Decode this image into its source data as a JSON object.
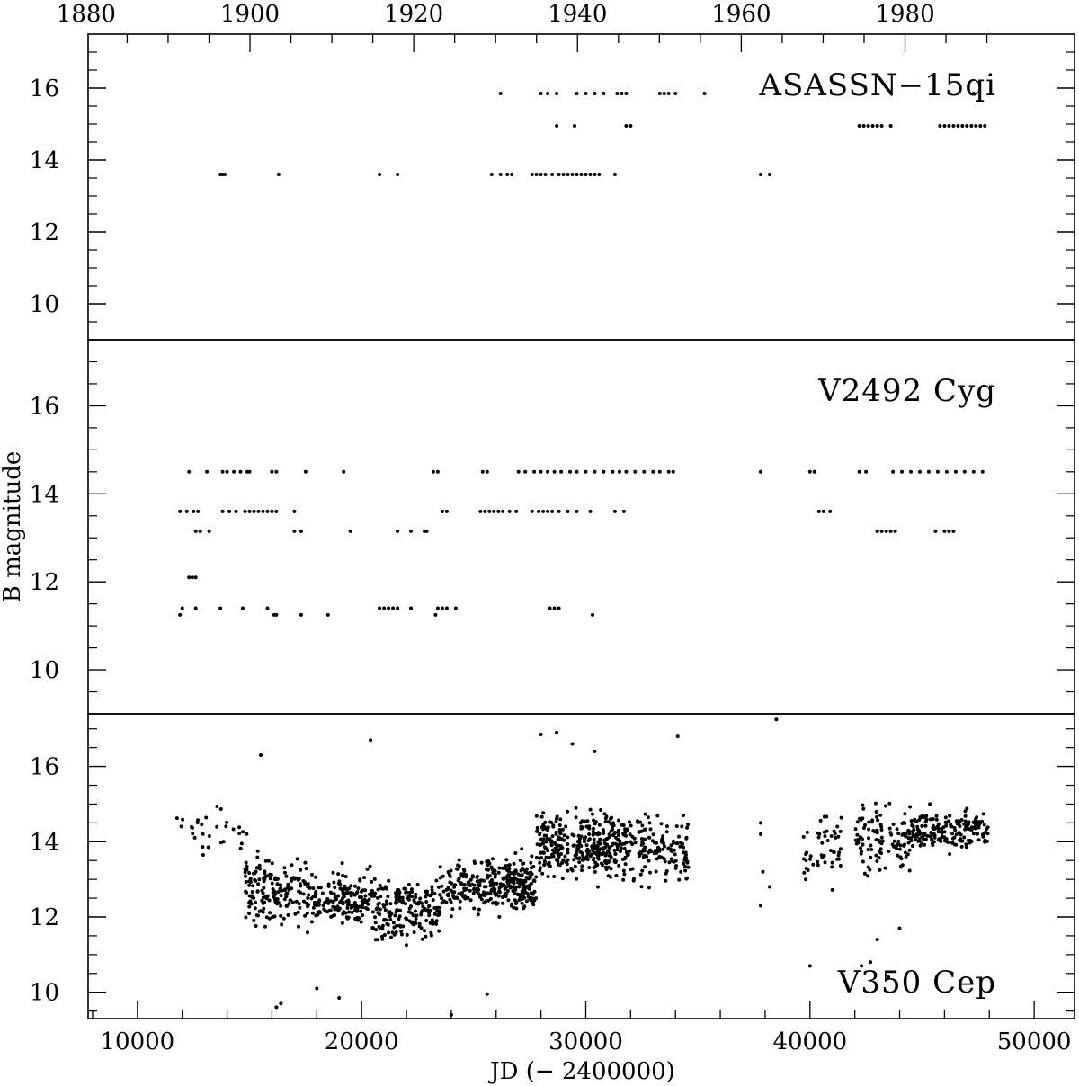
{
  "chart_data": {
    "type": "scatter",
    "xlabel": "JD (− 2400000)",
    "ylabel": "B magnitude",
    "xlim": [
      7800,
      51800
    ],
    "x_ticks": [
      10000,
      20000,
      30000,
      40000,
      50000
    ],
    "top_axis": {
      "ticks": [
        1880,
        1900,
        1920,
        1940,
        1960,
        1980
      ],
      "note": "calendar year axis along the top"
    },
    "y_inverted": true,
    "grid": false,
    "panels": [
      {
        "name": "ASASSN−15qi",
        "label_position": "top-right",
        "ylim": [
          17.5,
          9
        ],
        "y_ticks": [
          10,
          12,
          14,
          16
        ],
        "groups": [
          {
            "y": 13.6,
            "x": [
              13700,
              13800,
              13900,
              16300,
              20800,
              21600,
              25800,
              26200,
              26500,
              26700,
              27600,
              27800,
              28000,
              28200,
              28500,
              28800,
              29000,
              29200,
              29400,
              29600,
              29800,
              30000,
              30200,
              30400,
              30600,
              31300,
              37800,
              38200
            ]
          },
          {
            "y": 14.95,
            "x": [
              28700,
              29500,
              31800,
              32000,
              42200,
              42400,
              42600,
              42800,
              43000,
              43200,
              43600,
              45800,
              46000,
              46200,
              46400,
              46600,
              46800,
              47000,
              47200,
              47400,
              47600,
              47800
            ]
          },
          {
            "y": 15.85,
            "x": [
              26200,
              28000,
              28300,
              28700,
              29600,
              30000,
              30400,
              30800,
              31400,
              31600,
              31800,
              33300,
              33500,
              33700,
              34000,
              35300,
              47300
            ]
          }
        ]
      },
      {
        "name": "V2492 Cyg",
        "label_position": "top-right",
        "ylim": [
          17.5,
          9
        ],
        "y_ticks": [
          10,
          12,
          14,
          16
        ],
        "groups": [
          {
            "y": 11.25,
            "x": [
              11900,
              16100,
              16200,
              17300,
              18500,
              23300,
              30300
            ]
          },
          {
            "y": 11.4,
            "x": [
              12000,
              12600,
              13700,
              14700,
              15800,
              20800,
              21000,
              21200,
              21400,
              21600,
              22200,
              23400,
              23600,
              23800,
              24200,
              28400,
              28600,
              28800
            ]
          },
          {
            "y": 12.1,
            "x": [
              12300,
              12450,
              12600
            ]
          },
          {
            "y": 13.15,
            "x": [
              12600,
              12800,
              13200,
              17000,
              17300,
              19500,
              21600,
              22200,
              22800,
              22900,
              43000,
              43200,
              43400,
              43600,
              43800,
              45600,
              46000,
              46200,
              46400
            ]
          },
          {
            "y": 13.6,
            "x": [
              11900,
              12200,
              12500,
              12700,
              13800,
              14100,
              14400,
              14800,
              15000,
              15200,
              15400,
              15600,
              15800,
              16000,
              16200,
              17000,
              23600,
              23800,
              25300,
              25500,
              25700,
              25900,
              26100,
              26300,
              26600,
              26900,
              27600,
              27900,
              28100,
              28300,
              28500,
              28800,
              29200,
              29600,
              30200,
              31300,
              31700,
              40400,
              40600,
              40900
            ]
          },
          {
            "y": 14.5,
            "x": [
              12300,
              13100,
              13800,
              14000,
              14300,
              14600,
              14900,
              15000,
              16000,
              16200,
              17500,
              19200,
              23200,
              23400,
              25400,
              25600,
              27000,
              27300,
              27700,
              28000,
              28300,
              28600,
              28900,
              29300,
              29600,
              30000,
              30400,
              30800,
              31200,
              31500,
              31800,
              32200,
              32600,
              33000,
              33300,
              33700,
              33900,
              37800,
              40000,
              40200,
              42200,
              42500,
              43700,
              44100,
              44500,
              44900,
              45300,
              45700,
              46100,
              46500,
              46900,
              47300,
              47700
            ]
          }
        ]
      },
      {
        "name": "V350 Cep",
        "label_position": "bottom-right",
        "ylim": [
          17.4,
          9.3
        ],
        "y_ticks": [
          10,
          12,
          14,
          16
        ],
        "scatter_regions": [
          {
            "x": [
              11600,
              15200
            ],
            "y_center": 14.3,
            "y_spread": 1.1,
            "n": 30
          },
          {
            "x": [
              14800,
              17500
            ],
            "y_center": 12.7,
            "y_spread": 1.3,
            "n": 160
          },
          {
            "x": [
              17500,
              20500
            ],
            "y_center": 12.5,
            "y_spread": 1.0,
            "n": 170
          },
          {
            "x": [
              20500,
              23500
            ],
            "y_center": 12.2,
            "y_spread": 1.1,
            "n": 190
          },
          {
            "x": [
              23500,
              25600
            ],
            "y_center": 12.8,
            "y_spread": 1.0,
            "n": 120
          },
          {
            "x": [
              25600,
              27800
            ],
            "y_center": 12.9,
            "y_spread": 1.1,
            "n": 200
          },
          {
            "x": [
              27800,
              31500
            ],
            "y_center": 13.9,
            "y_spread": 1.3,
            "n": 330
          },
          {
            "x": [
              31500,
              34600
            ],
            "y_center": 13.8,
            "y_spread": 1.2,
            "n": 170
          },
          {
            "x": [
              39700,
              41400
            ],
            "y_center": 13.8,
            "y_spread": 1.3,
            "n": 50
          },
          {
            "x": [
              42000,
              44500
            ],
            "y_center": 14.1,
            "y_spread": 1.3,
            "n": 110
          },
          {
            "x": [
              44500,
              48000
            ],
            "y_center": 14.3,
            "y_spread": 0.75,
            "n": 190
          }
        ],
        "extra_points": [
          {
            "x": 16200,
            "y": 9.6
          },
          {
            "x": 16400,
            "y": 9.7
          },
          {
            "x": 18000,
            "y": 10.1
          },
          {
            "x": 19000,
            "y": 9.85
          },
          {
            "x": 24000,
            "y": 9.4
          },
          {
            "x": 25600,
            "y": 9.95
          },
          {
            "x": 15500,
            "y": 16.3
          },
          {
            "x": 20400,
            "y": 16.7
          },
          {
            "x": 28000,
            "y": 16.85
          },
          {
            "x": 28700,
            "y": 16.9
          },
          {
            "x": 29400,
            "y": 16.6
          },
          {
            "x": 30400,
            "y": 16.4
          },
          {
            "x": 34100,
            "y": 16.8
          },
          {
            "x": 37800,
            "y": 12.3
          },
          {
            "x": 37900,
            "y": 13.2
          },
          {
            "x": 37800,
            "y": 14.2
          },
          {
            "x": 37800,
            "y": 14.5
          },
          {
            "x": 38200,
            "y": 12.8
          },
          {
            "x": 38500,
            "y": 17.25
          },
          {
            "x": 40000,
            "y": 10.7
          },
          {
            "x": 42300,
            "y": 10.7
          },
          {
            "x": 42700,
            "y": 10.8
          },
          {
            "x": 43500,
            "y": 10.4
          },
          {
            "x": 43000,
            "y": 11.4
          },
          {
            "x": 44000,
            "y": 11.7
          }
        ]
      }
    ]
  }
}
